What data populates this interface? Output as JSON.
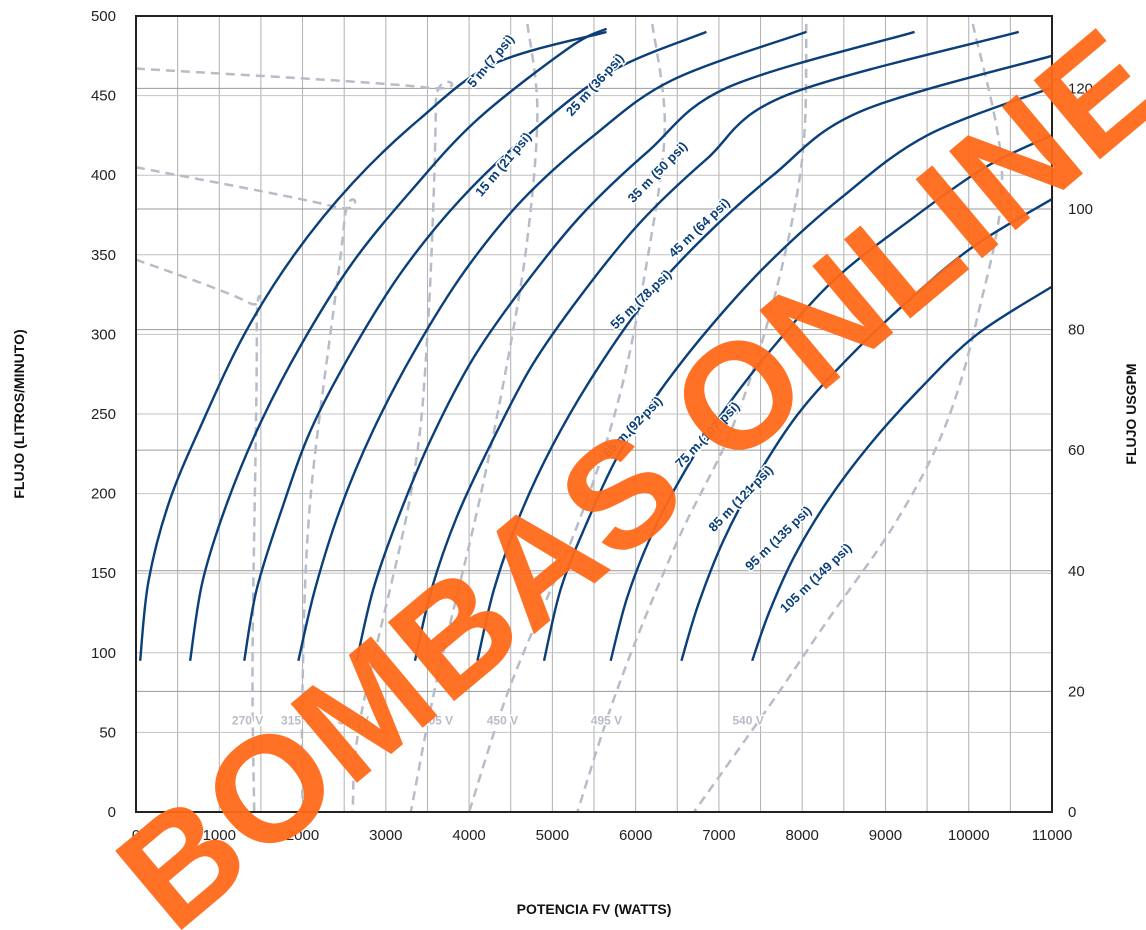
{
  "chart_data": {
    "type": "line",
    "xlabel": "POTENCIA FV (WATTS)",
    "ylabel": "FLUJO (LITROS/MINUTO)",
    "y2label": "FLUJO USGPM",
    "xlim": [
      0,
      11000
    ],
    "ylim": [
      0,
      500
    ],
    "y2lim": [
      0,
      132
    ],
    "xticks": [
      "0",
      "1000",
      "2000",
      "3000",
      "4000",
      "5000",
      "6000",
      "7000",
      "8000",
      "9000",
      "10000",
      "11000"
    ],
    "yticks": [
      "0",
      "50",
      "100",
      "150",
      "200",
      "250",
      "300",
      "350",
      "400",
      "450",
      "500"
    ],
    "y2ticks": [
      "0",
      "20",
      "40",
      "60",
      "80",
      "100",
      "120"
    ],
    "grid": true,
    "head_curves": [
      {
        "name": "5 m (7 psi)",
        "x": [
          50,
          150,
          400,
          800,
          1300,
          1900,
          2600,
          3400,
          4300,
          5650
        ],
        "y": [
          95,
          145,
          195,
          245,
          300,
          350,
          395,
          435,
          470,
          490
        ]
      },
      {
        "name": "15 m (21 psi)",
        "x": [
          650,
          800,
          1100,
          1500,
          2000,
          2600,
          3300,
          4100,
          5200,
          5650
        ],
        "y": [
          95,
          145,
          195,
          245,
          295,
          345,
          390,
          435,
          480,
          492
        ]
      },
      {
        "name": "25 m (36 psi)",
        "x": [
          1300,
          1450,
          1750,
          2100,
          2600,
          3200,
          3900,
          4700,
          5700,
          6850
        ],
        "y": [
          95,
          140,
          190,
          240,
          290,
          340,
          385,
          425,
          465,
          490
        ]
      },
      {
        "name": "35 m (50 psi)",
        "x": [
          1950,
          2150,
          2450,
          2850,
          3350,
          3950,
          4650,
          5500,
          6450,
          8050
        ],
        "y": [
          95,
          140,
          190,
          240,
          290,
          340,
          385,
          425,
          460,
          490
        ]
      },
      {
        "name": "45 m (64 psi)",
        "x": [
          2650,
          2850,
          3150,
          3550,
          4050,
          4650,
          5350,
          6150,
          7100,
          9350
        ],
        "y": [
          95,
          140,
          185,
          235,
          285,
          330,
          375,
          415,
          455,
          490
        ]
      },
      {
        "name": "55 m (78 psi)",
        "x": [
          3350,
          3550,
          3850,
          4250,
          4750,
          5350,
          6050,
          6850,
          7800,
          10600
        ],
        "y": [
          95,
          140,
          185,
          230,
          280,
          325,
          370,
          410,
          450,
          490
        ]
      },
      {
        "name": "65 m (92 psi)",
        "x": [
          4100,
          4300,
          4600,
          5000,
          5500,
          6100,
          6800,
          7650,
          8700,
          11000
        ],
        "y": [
          95,
          140,
          185,
          230,
          275,
          320,
          360,
          400,
          440,
          475
        ]
      },
      {
        "name": "75 m (107 psi)",
        "x": [
          4900,
          5100,
          5400,
          5800,
          6300,
          6900,
          7600,
          8450,
          9500,
          11000
        ],
        "y": [
          95,
          140,
          180,
          225,
          265,
          305,
          345,
          385,
          425,
          455
        ]
      },
      {
        "name": "85 m (121 psi)",
        "x": [
          5700,
          5900,
          6200,
          6600,
          7100,
          7700,
          8400,
          9250,
          10200,
          11000
        ],
        "y": [
          95,
          135,
          175,
          215,
          255,
          295,
          335,
          370,
          405,
          425
        ]
      },
      {
        "name": "95 m (135 psi)",
        "x": [
          6550,
          6750,
          7050,
          7450,
          7950,
          8550,
          9250,
          10050,
          11000
        ],
        "y": [
          95,
          130,
          170,
          210,
          250,
          285,
          320,
          355,
          385
        ]
      },
      {
        "name": "105 m (149 psi)",
        "x": [
          7400,
          7600,
          7900,
          8300,
          8800,
          9400,
          10100,
          11000
        ],
        "y": [
          95,
          125,
          160,
          195,
          230,
          265,
          300,
          330
        ]
      }
    ],
    "voltage_curves": [
      {
        "name": "270 V",
        "x": [
          0,
          1350,
          1450,
          1400,
          1420
        ],
        "y": [
          347,
          320,
          305,
          100,
          0
        ]
      },
      {
        "name": "315 V",
        "x": [
          0,
          2400,
          2500,
          2100,
          2000,
          2000
        ],
        "y": [
          405,
          380,
          370,
          200,
          80,
          0
        ]
      },
      {
        "name": "360 V",
        "x": [
          0,
          3500,
          3600,
          3500,
          3300,
          2700,
          2600
        ],
        "y": [
          467,
          455,
          445,
          300,
          200,
          60,
          0
        ]
      },
      {
        "name": "405 V",
        "x": [
          4700,
          4820,
          4700,
          4450,
          4100,
          3600,
          3300
        ],
        "y": [
          495,
          440,
          360,
          280,
          190,
          80,
          0
        ]
      },
      {
        "name": "450 V",
        "x": [
          6200,
          6350,
          6150,
          5800,
          5300,
          4500,
          4000
        ],
        "y": [
          495,
          430,
          350,
          260,
          180,
          80,
          0
        ]
      },
      {
        "name": "495 V",
        "x": [
          8050,
          8000,
          7650,
          7150,
          6500,
          5800,
          5300
        ],
        "y": [
          495,
          410,
          320,
          240,
          170,
          80,
          0
        ]
      },
      {
        "name": "540 V",
        "x": [
          10050,
          10400,
          10100,
          9700,
          9100,
          8300,
          7650,
          6700
        ],
        "y": [
          495,
          400,
          310,
          240,
          180,
          120,
          70,
          0
        ]
      }
    ],
    "legend": "inline"
  },
  "watermark": "BOMBAS ONLINE",
  "colors": {
    "curve": "#0a3f79",
    "voltage": "#b7bcc8",
    "grid": "#aaaaaa",
    "axis": "#222222",
    "watermark": "#ff6a1a"
  }
}
